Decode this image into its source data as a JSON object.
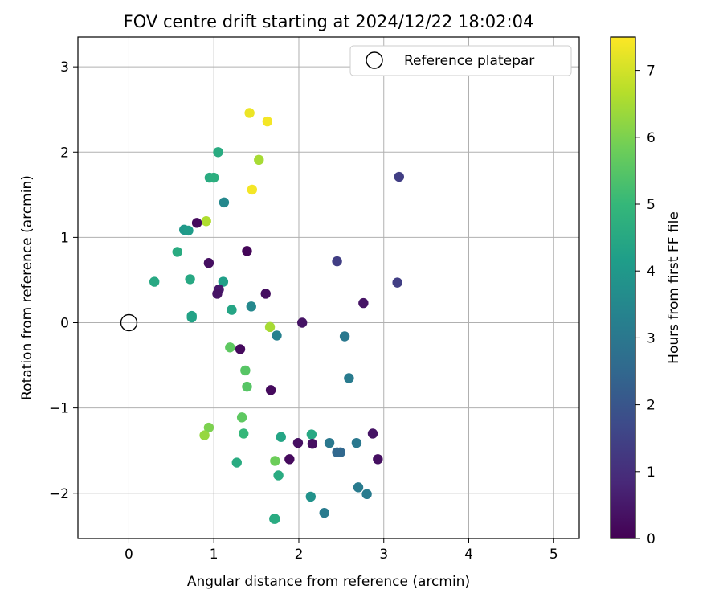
{
  "chart_data": {
    "type": "scatter",
    "title": "FOV centre drift starting at 2024/12/22 18:02:04",
    "xlabel": "Angular distance from reference (arcmin)",
    "ylabel": "Rotation from reference (arcmin)",
    "xlim": [
      -0.6,
      5.3
    ],
    "ylim": [
      -2.53,
      3.35
    ],
    "xticks": [
      0,
      1,
      2,
      3,
      4,
      5
    ],
    "xtick_labels": [
      "0",
      "1",
      "2",
      "3",
      "4",
      "5"
    ],
    "yticks": [
      -2,
      -1,
      0,
      1,
      2,
      3
    ],
    "ytick_labels": [
      "−2",
      "−1",
      "0",
      "1",
      "2",
      "3"
    ],
    "grid": true,
    "legend": {
      "position": "top-right",
      "entries": [
        "Reference platepar"
      ]
    },
    "reference_point": {
      "x": 0,
      "y": 0
    },
    "colorbar": {
      "label": "Hours from first FF file",
      "range": [
        0,
        7.5
      ],
      "ticks": [
        0,
        1,
        2,
        3,
        4,
        5,
        6,
        7
      ],
      "tick_labels": [
        "0",
        "1",
        "2",
        "3",
        "4",
        "5",
        "6",
        "7"
      ],
      "colormap": "viridis",
      "colors": [
        "#440154",
        "#482878",
        "#3e4989",
        "#31688e",
        "#26828e",
        "#1f9e89",
        "#35b779",
        "#6ece58",
        "#b5de2b",
        "#fde725"
      ]
    },
    "points": [
      {
        "x": 1.42,
        "y": 2.46,
        "c": 7.3
      },
      {
        "x": 1.63,
        "y": 2.36,
        "c": 7.4
      },
      {
        "x": 1.05,
        "y": 2.0,
        "c": 4.6
      },
      {
        "x": 1.53,
        "y": 1.91,
        "c": 6.5
      },
      {
        "x": 0.95,
        "y": 1.7,
        "c": 4.6
      },
      {
        "x": 1.0,
        "y": 1.7,
        "c": 4.7
      },
      {
        "x": 1.45,
        "y": 1.56,
        "c": 7.4
      },
      {
        "x": 3.18,
        "y": 1.71,
        "c": 1.4
      },
      {
        "x": 1.12,
        "y": 1.41,
        "c": 3.5
      },
      {
        "x": 0.91,
        "y": 1.19,
        "c": 6.6
      },
      {
        "x": 0.8,
        "y": 1.17,
        "c": 0.2
      },
      {
        "x": 0.65,
        "y": 1.09,
        "c": 4.0
      },
      {
        "x": 0.7,
        "y": 1.08,
        "c": 4.1
      },
      {
        "x": 0.57,
        "y": 0.83,
        "c": 4.6
      },
      {
        "x": 1.39,
        "y": 0.84,
        "c": 0.1
      },
      {
        "x": 0.94,
        "y": 0.7,
        "c": 0.3
      },
      {
        "x": 2.45,
        "y": 0.72,
        "c": 1.4
      },
      {
        "x": 0.3,
        "y": 0.48,
        "c": 4.5
      },
      {
        "x": 0.72,
        "y": 0.51,
        "c": 4.5
      },
      {
        "x": 1.11,
        "y": 0.48,
        "c": 4.2
      },
      {
        "x": 3.16,
        "y": 0.47,
        "c": 1.4
      },
      {
        "x": 1.06,
        "y": 0.39,
        "c": 0.5
      },
      {
        "x": 1.04,
        "y": 0.34,
        "c": 0.4
      },
      {
        "x": 1.61,
        "y": 0.34,
        "c": 0.3
      },
      {
        "x": 2.76,
        "y": 0.23,
        "c": 0.4
      },
      {
        "x": 1.44,
        "y": 0.19,
        "c": 3.5
      },
      {
        "x": 1.21,
        "y": 0.15,
        "c": 4.4
      },
      {
        "x": 0.74,
        "y": 0.08,
        "c": 4.3
      },
      {
        "x": 0.74,
        "y": 0.06,
        "c": 4.3
      },
      {
        "x": 2.04,
        "y": 0.0,
        "c": 0.4
      },
      {
        "x": 1.66,
        "y": -0.05,
        "c": 6.5
      },
      {
        "x": 1.74,
        "y": -0.15,
        "c": 3.3
      },
      {
        "x": 2.54,
        "y": -0.16,
        "c": 3.0
      },
      {
        "x": 1.19,
        "y": -0.29,
        "c": 5.6
      },
      {
        "x": 1.31,
        "y": -0.31,
        "c": 0.2
      },
      {
        "x": 1.37,
        "y": -0.56,
        "c": 5.5
      },
      {
        "x": 2.59,
        "y": -0.65,
        "c": 3.1
      },
      {
        "x": 1.39,
        "y": -0.75,
        "c": 5.5
      },
      {
        "x": 1.67,
        "y": -0.79,
        "c": 0.2
      },
      {
        "x": 1.33,
        "y": -1.11,
        "c": 5.6
      },
      {
        "x": 0.94,
        "y": -1.23,
        "c": 6.0
      },
      {
        "x": 0.89,
        "y": -1.32,
        "c": 6.3
      },
      {
        "x": 1.35,
        "y": -1.3,
        "c": 5.0
      },
      {
        "x": 1.79,
        "y": -1.34,
        "c": 4.4
      },
      {
        "x": 2.15,
        "y": -1.31,
        "c": 4.5
      },
      {
        "x": 2.87,
        "y": -1.3,
        "c": 0.4
      },
      {
        "x": 1.99,
        "y": -1.41,
        "c": 0.3
      },
      {
        "x": 2.16,
        "y": -1.42,
        "c": 0.3
      },
      {
        "x": 2.36,
        "y": -1.41,
        "c": 3.0
      },
      {
        "x": 2.68,
        "y": -1.41,
        "c": 3.0
      },
      {
        "x": 2.45,
        "y": -1.52,
        "c": 2.5
      },
      {
        "x": 2.49,
        "y": -1.52,
        "c": 2.5
      },
      {
        "x": 1.89,
        "y": -1.6,
        "c": 0.2
      },
      {
        "x": 2.93,
        "y": -1.6,
        "c": 0.3
      },
      {
        "x": 1.72,
        "y": -1.62,
        "c": 5.8
      },
      {
        "x": 1.27,
        "y": -1.64,
        "c": 4.6
      },
      {
        "x": 1.76,
        "y": -1.79,
        "c": 4.6
      },
      {
        "x": 2.7,
        "y": -1.93,
        "c": 3.1
      },
      {
        "x": 2.8,
        "y": -2.01,
        "c": 3.1
      },
      {
        "x": 2.14,
        "y": -2.04,
        "c": 3.8
      },
      {
        "x": 2.3,
        "y": -2.23,
        "c": 3.1
      },
      {
        "x": 1.71,
        "y": -2.3,
        "c": 4.5
      },
      {
        "x": 1.72,
        "y": -2.3,
        "c": 4.6
      }
    ]
  }
}
